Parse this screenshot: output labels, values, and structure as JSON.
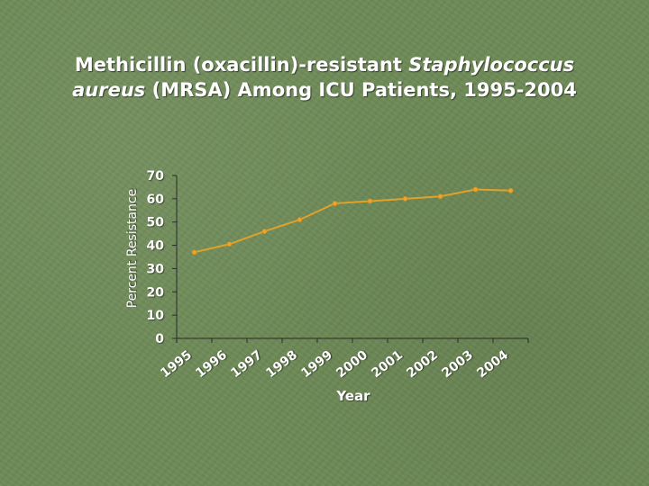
{
  "slide": {
    "title_line1_prefix": "Methicillin (oxacillin)-resistant ",
    "title_line1_italic": "Staphylococcus",
    "title_line2_italic": "aureus",
    "title_line2_rest": " (MRSA) Among ICU Patients, 1995-2004"
  },
  "colors": {
    "line": "#e0a228",
    "marker": "#e8a530",
    "axis_text": "#ffffff",
    "axis_line": "#2a2a2a"
  },
  "chart_data": {
    "type": "line",
    "categories": [
      "1995",
      "1996",
      "1997",
      "1998",
      "1999",
      "2000",
      "2001",
      "2002",
      "2003",
      "2004"
    ],
    "series": [
      {
        "values": [
          37,
          40.5,
          46,
          51,
          58,
          59,
          60,
          61,
          64,
          63.5
        ]
      }
    ],
    "xlabel": "Year",
    "ylabel": "Percent Resistance",
    "ylim": [
      0,
      70
    ],
    "yticks": [
      0,
      10,
      20,
      30,
      40,
      50,
      60,
      70
    ],
    "grid": false,
    "legend": "none"
  }
}
